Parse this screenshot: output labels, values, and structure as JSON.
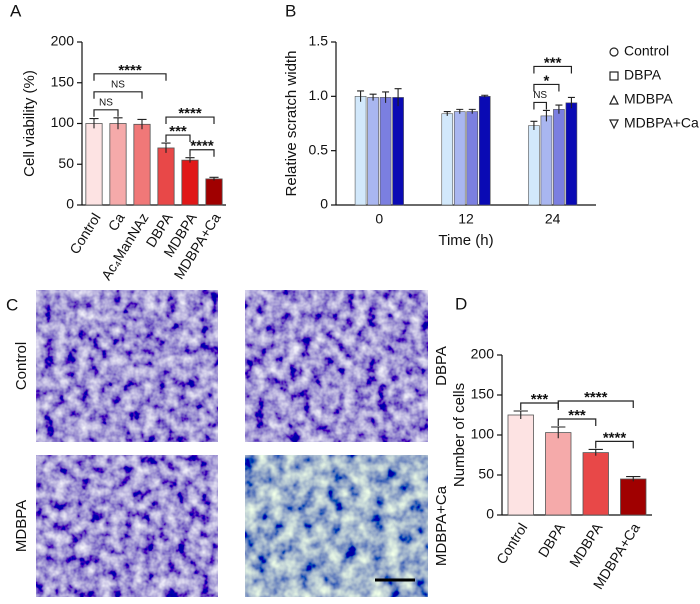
{
  "chart_data": [
    {
      "type": "bar",
      "panel_label": "A",
      "y_label": "Cell viability (%)",
      "categories": [
        "Control",
        "Ca",
        "Ac₄ManNAz",
        "DBPA",
        "MDBPA",
        "MDBPA+Ca"
      ],
      "values": [
        100,
        100,
        99,
        70,
        55,
        32
      ],
      "errors": [
        6,
        7,
        6,
        6,
        3,
        2
      ],
      "colors": [
        "#fde3e3",
        "#f5aaaa",
        "#f07878",
        "#e84848",
        "#e01818",
        "#a00000"
      ],
      "ylim": [
        0,
        200
      ],
      "yticks": [
        0,
        50,
        100,
        150,
        200
      ],
      "comparisons": [
        {
          "label": "NS",
          "pair": [
            "Control",
            "Ca"
          ]
        },
        {
          "label": "NS",
          "pair": [
            "Control",
            "Ac₄ManNAz"
          ]
        },
        {
          "label": "***",
          "pair": [
            "DBPA",
            "MDBPA"
          ]
        },
        {
          "label": "****",
          "pair": [
            "MDBPA",
            "MDBPA+Ca"
          ]
        },
        {
          "label": "****",
          "pair": [
            "Control",
            "DBPA"
          ]
        },
        {
          "label": "****",
          "pair": [
            "DBPA",
            "MDBPA+Ca"
          ]
        }
      ]
    },
    {
      "type": "grouped_bar",
      "panel_label": "B",
      "y_label": "Relative scratch width",
      "x_label": "Time (h)",
      "categories": [
        "0",
        "12",
        "24"
      ],
      "series": [
        {
          "name": "Control",
          "color": "#d2e8fb",
          "values": [
            1.0,
            0.84,
            0.73
          ],
          "errors": [
            0.05,
            0.02,
            0.04
          ]
        },
        {
          "name": "DBPA",
          "color": "#a9b6f0",
          "values": [
            0.99,
            0.86,
            0.82
          ],
          "errors": [
            0.03,
            0.02,
            0.05
          ]
        },
        {
          "name": "MDBPA",
          "color": "#7b7fe0",
          "values": [
            0.99,
            0.86,
            0.88
          ],
          "errors": [
            0.05,
            0.02,
            0.04
          ]
        },
        {
          "name": "MDBPA+Ca",
          "color": "#0a0ab4",
          "values": [
            0.99,
            1.0,
            0.94
          ],
          "errors": [
            0.08,
            0.01,
            0.05
          ]
        }
      ],
      "ylim": [
        0,
        1.5
      ],
      "yticks": [
        0,
        0.5,
        {
          "value": 1,
          "label": "1.0"
        },
        1.5
      ],
      "legend": "right",
      "comparisons": [
        {
          "label": "NS",
          "category": "24",
          "pair": [
            "Control",
            "DBPA"
          ]
        },
        {
          "label": "*",
          "category": "24",
          "pair": [
            "Control",
            "MDBPA"
          ]
        },
        {
          "label": "***",
          "category": "24",
          "pair": [
            "Control",
            "MDBPA+Ca"
          ]
        }
      ]
    },
    {
      "type": "bar",
      "panel_label": "D",
      "y_label": "Number of cells",
      "categories": [
        "Control",
        "DBPA",
        "MDBPA",
        "MDBPA+Ca"
      ],
      "values": [
        125,
        103,
        78,
        45
      ],
      "errors": [
        5,
        7,
        4,
        3
      ],
      "colors": [
        "#fde3e3",
        "#f5aaaa",
        "#e84848",
        "#a00000"
      ],
      "ylim": [
        0,
        200
      ],
      "yticks": [
        0,
        50,
        100,
        150,
        200
      ],
      "comparisons": [
        {
          "label": "***",
          "pair": [
            "Control",
            "DBPA"
          ]
        },
        {
          "label": "***",
          "pair": [
            "DBPA",
            "MDBPA"
          ]
        },
        {
          "label": "****",
          "pair": [
            "MDBPA",
            "MDBPA+Ca"
          ]
        },
        {
          "label": "****",
          "pair": [
            "DBPA",
            "MDBPA+Ca"
          ]
        }
      ]
    }
  ],
  "image_panel": {
    "panel_label": "C",
    "images": [
      "Control",
      "DBPA",
      "MDBPA",
      "MDBPA+Ca"
    ]
  }
}
